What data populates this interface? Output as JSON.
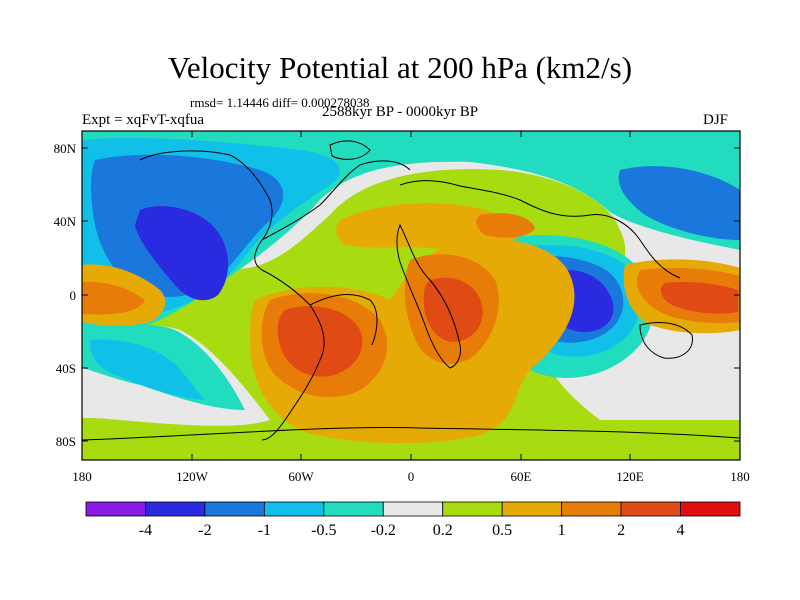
{
  "figure": {
    "title": "Velocity Potential at 200 hPa (km2/s)",
    "stats": "rmsd= 1.14446 diff= 0.000278038",
    "experiment": "Expt = xqFvT-xqfua",
    "period": "2588kyr BP - 0000kyr BP",
    "season": "DJF"
  },
  "axes": {
    "y_ticks": [
      "80N",
      "40N",
      "0",
      "40S",
      "80S"
    ],
    "x_ticks": [
      "180",
      "120W",
      "60W",
      "0",
      "60E",
      "120E",
      "180"
    ]
  },
  "colorbar": {
    "colors": [
      "#8c1ae6",
      "#2a2ae0",
      "#1a78dc",
      "#10c0e8",
      "#22dcc0",
      "#e8e8e8",
      "#a8dc10",
      "#e6aa06",
      "#e87c08",
      "#e04a14",
      "#e01010"
    ],
    "labels": [
      "-4",
      "-2",
      "-1",
      "-0.5",
      "-0.2",
      "0.2",
      "0.5",
      "1",
      "2",
      "4"
    ]
  }
}
